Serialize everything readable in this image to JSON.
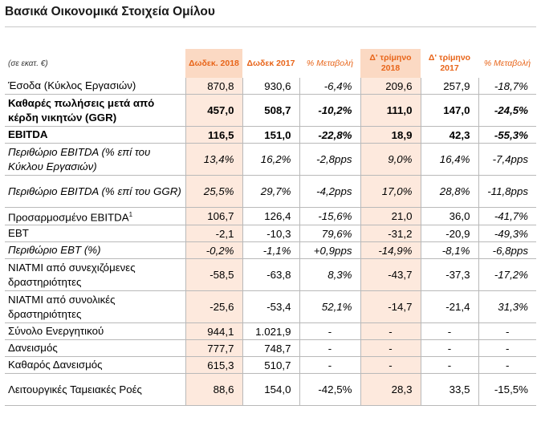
{
  "title": "Βασικά Οικονομικά Στοιχεία Ομίλου",
  "header": {
    "unit": "(σε εκατ. €)",
    "col1": "Δωδεκ. 2018",
    "col2": "Δωδεκ 2017",
    "col3": "% Μεταβολή",
    "col4": "Δ' τρίμηνο 2018",
    "col5": "Δ' τρίμηνο 2017",
    "col6": "% Μεταβολή"
  },
  "rows": [
    {
      "label": "Έσοδα (Κύκλος Εργασιών)",
      "v1": "870,8",
      "v2": "930,6",
      "v3": "-6,4%",
      "v4": "209,6",
      "v5": "257,9",
      "v6": "-18,7%"
    },
    {
      "label": "Καθαρές πωλήσεις μετά από κέρδη νικητών (GGR)",
      "v1": "457,0",
      "v2": "508,7",
      "v3": "-10,2%",
      "v4": "111,0",
      "v5": "147,0",
      "v6": "-24,5%"
    },
    {
      "label": "EBITDA",
      "v1": "116,5",
      "v2": "151,0",
      "v3": "-22,8%",
      "v4": "18,9",
      "v5": "42,3",
      "v6": "-55,3%"
    },
    {
      "label": "Περιθώριο EBITDA (% επί του Κύκλου Εργασιών)",
      "v1": "13,4%",
      "v2": "16,2%",
      "v3": "-2,8pps",
      "v4": "9,0%",
      "v5": "16,4%",
      "v6": "-7,4pps"
    },
    {
      "label": "Περιθώριο EBITDA (% επί του GGR)",
      "v1": "25,5%",
      "v2": "29,7%",
      "v3": "-4,2pps",
      "v4": "17,0%",
      "v5": "28,8%",
      "v6": "-11,8pps"
    },
    {
      "label": "Προσαρμοσμένο EBITDA",
      "sup": "1",
      "v1": "106,7",
      "v2": "126,4",
      "v3": "-15,6%",
      "v4": "21,0",
      "v5": "36,0",
      "v6": "-41,7%"
    },
    {
      "label": "EBT",
      "v1": "-2,1",
      "v2": "-10,3",
      "v3": "79,6%",
      "v4": "-31,2",
      "v5": "-20,9",
      "v6": "-49,3%"
    },
    {
      "label": "Περιθώριο EBT (%)",
      "v1": "-0,2%",
      "v2": "-1,1%",
      "v3": "+0,9pps",
      "v4": "-14,9%",
      "v5": "-8,1%",
      "v6": "-6,8pps"
    },
    {
      "label": "ΝΙΑΤΜΙ από συνεχιζόμενες δραστηριότητες",
      "v1": "-58,5",
      "v2": "-63,8",
      "v3": "8,3%",
      "v4": "-43,7",
      "v5": "-37,3",
      "v6": "-17,2%"
    },
    {
      "label": "ΝΙΑΤΜΙ από συνολικές δραστηριότητες",
      "v1": "-25,6",
      "v2": "-53,4",
      "v3": "52,1%",
      "v4": "-14,7",
      "v5": "-21,4",
      "v6": "31,3%"
    },
    {
      "label": "Σύνολο Ενεργητικού",
      "v1": "944,1",
      "v2": "1.021,9",
      "v3": "-",
      "v4": "-",
      "v5": "-",
      "v6": "-"
    },
    {
      "label": "Δανεισμός",
      "v1": "777,7",
      "v2": "748,7",
      "v3": "-",
      "v4": "-",
      "v5": "-",
      "v6": "-"
    },
    {
      "label": "Καθαρός Δανεισμός",
      "v1": "615,3",
      "v2": "510,7",
      "v3": "-",
      "v4": "-",
      "v5": "-",
      "v6": "-"
    },
    {
      "label": "Λειτουργικές Ταμειακές Ροές",
      "v1": "88,6",
      "v2": "154,0",
      "v3": "-42,5%",
      "v4": "28,3",
      "v5": "33,5",
      "v6": "-15,5%"
    }
  ]
}
